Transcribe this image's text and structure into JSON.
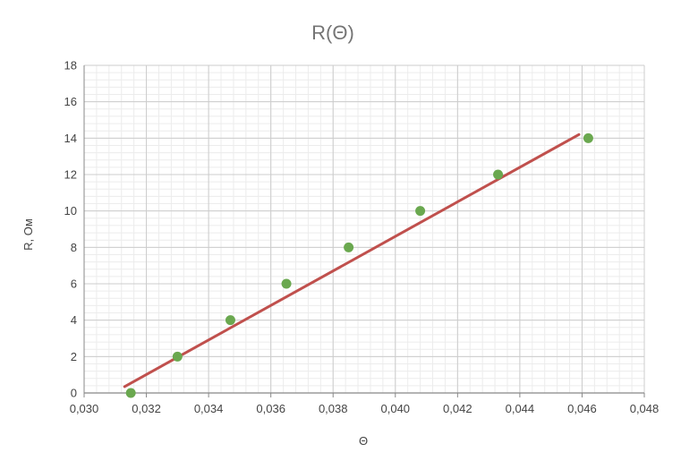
{
  "chart_data": {
    "type": "scatter",
    "title": "R(Θ)",
    "xlabel": "Θ",
    "ylabel": "R, Ом",
    "xlim": [
      0.03,
      0.048
    ],
    "ylim": [
      0,
      18
    ],
    "x_major_step": 0.002,
    "x_minor_step": 0.0004,
    "y_major_step": 2,
    "y_minor_step": 0.4,
    "x_tick_decimals": 3,
    "decimal_separator": ",",
    "x_tick_labels": [
      "0,030",
      "0,032",
      "0,034",
      "0,036",
      "0,038",
      "0,040",
      "0,042",
      "0,044",
      "0,046",
      "0,048"
    ],
    "y_tick_labels": [
      "0",
      "2",
      "4",
      "6",
      "8",
      "10",
      "12",
      "14",
      "16",
      "18"
    ],
    "grid": true,
    "legend": "none",
    "series": [
      {
        "type": "scatter",
        "color": "#6aa84f",
        "points": [
          {
            "x": 0.0315,
            "y": 0
          },
          {
            "x": 0.033,
            "y": 2
          },
          {
            "x": 0.0347,
            "y": 4
          },
          {
            "x": 0.0365,
            "y": 6
          },
          {
            "x": 0.0385,
            "y": 8
          },
          {
            "x": 0.0408,
            "y": 10
          },
          {
            "x": 0.0433,
            "y": 12
          },
          {
            "x": 0.0462,
            "y": 14
          }
        ]
      },
      {
        "type": "line",
        "color": "#c0504d",
        "points": [
          {
            "x": 0.0313,
            "y": 0.35
          },
          {
            "x": 0.0459,
            "y": 14.2
          }
        ]
      }
    ],
    "colors": {
      "title": "#757575",
      "axis_text": "#444444",
      "major_grid": "#cccccc",
      "minor_grid": "#ececec",
      "axis_line": "#888888"
    }
  }
}
